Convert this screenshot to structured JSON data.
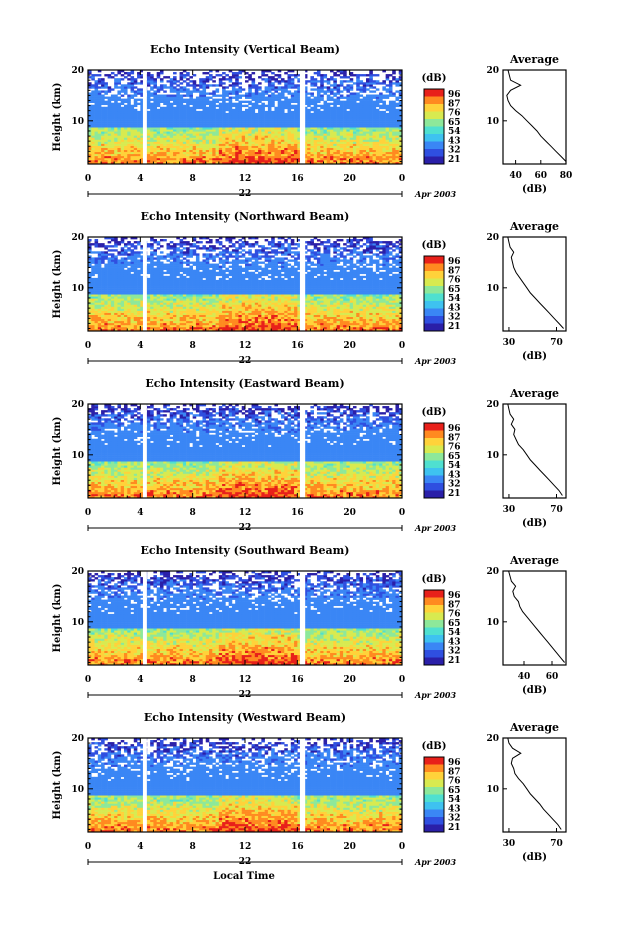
{
  "colors": {
    "colormap": [
      "#2a1fa8",
      "#2f4fe0",
      "#3a86f5",
      "#3ec2f0",
      "#4fe0d0",
      "#8de89a",
      "#d8ea50",
      "#ffd23a",
      "#ff8a20",
      "#e8201a"
    ],
    "line": "#000000",
    "gap": "#ffffff"
  },
  "chart_data": [
    {
      "type": "heatmap",
      "title": "Echo Intensity (Vertical Beam)",
      "ylabel": "Height (km)",
      "x_ticks": [
        "0",
        "4",
        "8",
        "12",
        "16",
        "20",
        "0"
      ],
      "y_ticks": [
        "20",
        "10"
      ],
      "xlim": [
        0,
        24
      ],
      "ylim": [
        1.5,
        20
      ],
      "date_day": "22",
      "date_label": "Apr 2003",
      "colorbar": {
        "unit": "(dB)",
        "labels": [
          "96",
          "87",
          "76",
          "65",
          "54",
          "43",
          "32",
          "21"
        ]
      },
      "data_gaps_hours": [
        [
          4.2,
          4.5
        ],
        [
          16.2,
          16.6
        ]
      ],
      "noise_seed": 11,
      "white_frac": 0.55,
      "avg_profile": {
        "title": "Average",
        "xlabel": "(dB)",
        "x_ticks": [
          "40",
          "60",
          "80"
        ],
        "xlim": [
          30,
          80
        ],
        "y_ticks": [
          "20",
          "10"
        ],
        "heights_km": [
          2,
          3,
          4,
          5,
          6,
          7,
          8,
          9,
          10,
          11,
          12,
          13,
          14,
          15,
          16,
          17,
          18,
          19,
          20
        ],
        "values_db": [
          80,
          76,
          72,
          68,
          64,
          60,
          57,
          53,
          49,
          45,
          40,
          36,
          34,
          33,
          36,
          44,
          36,
          35,
          34
        ]
      }
    },
    {
      "type": "heatmap",
      "title": "Echo Intensity (Northward Beam)",
      "ylabel": "Height (km)",
      "x_ticks": [
        "0",
        "4",
        "8",
        "12",
        "16",
        "20",
        "0"
      ],
      "y_ticks": [
        "20",
        "10"
      ],
      "xlim": [
        0,
        24
      ],
      "ylim": [
        1.5,
        20
      ],
      "date_day": "22",
      "date_label": "Apr 2003",
      "colorbar": {
        "unit": "(dB)",
        "labels": [
          "96",
          "87",
          "76",
          "65",
          "54",
          "43",
          "32",
          "21"
        ]
      },
      "data_gaps_hours": [
        [
          4.2,
          4.5
        ],
        [
          16.2,
          16.6
        ]
      ],
      "noise_seed": 23,
      "white_frac": 0.45,
      "avg_profile": {
        "title": "Average",
        "xlabel": "(dB)",
        "x_ticks": [
          "30",
          "70"
        ],
        "xlim": [
          25,
          78
        ],
        "y_ticks": [
          "20",
          "10"
        ],
        "heights_km": [
          2,
          3,
          4,
          5,
          6,
          7,
          8,
          9,
          10,
          11,
          12,
          13,
          14,
          15,
          16,
          17,
          18,
          19,
          20
        ],
        "values_db": [
          76,
          72,
          68,
          64,
          60,
          56,
          52,
          48,
          45,
          42,
          39,
          36,
          34,
          33,
          32,
          34,
          31,
          30,
          29
        ]
      }
    },
    {
      "type": "heatmap",
      "title": "Echo Intensity (Eastward Beam)",
      "ylabel": "Height (km)",
      "x_ticks": [
        "0",
        "4",
        "8",
        "12",
        "16",
        "20",
        "0"
      ],
      "y_ticks": [
        "20",
        "10"
      ],
      "xlim": [
        0,
        24
      ],
      "ylim": [
        1.5,
        20
      ],
      "date_day": "22",
      "date_label": "Apr 2003",
      "colorbar": {
        "unit": "(dB)",
        "labels": [
          "96",
          "87",
          "76",
          "65",
          "54",
          "43",
          "32",
          "21"
        ]
      },
      "data_gaps_hours": [
        [
          4.2,
          4.5
        ],
        [
          16.2,
          16.6
        ]
      ],
      "noise_seed": 37,
      "white_frac": 0.4,
      "avg_profile": {
        "title": "Average",
        "xlabel": "(dB)",
        "x_ticks": [
          "30",
          "70"
        ],
        "xlim": [
          25,
          78
        ],
        "y_ticks": [
          "20",
          "10"
        ],
        "heights_km": [
          2,
          3,
          4,
          5,
          6,
          7,
          8,
          9,
          10,
          11,
          12,
          13,
          14,
          15,
          16,
          17,
          18,
          19,
          20
        ],
        "values_db": [
          75,
          72,
          68,
          64,
          60,
          56,
          52,
          48,
          45,
          42,
          38,
          36,
          34,
          35,
          32,
          34,
          31,
          30,
          29
        ]
      }
    },
    {
      "type": "heatmap",
      "title": "Echo Intensity (Southward Beam)",
      "ylabel": "Height (km)",
      "x_ticks": [
        "0",
        "4",
        "8",
        "12",
        "16",
        "20",
        "0"
      ],
      "y_ticks": [
        "20",
        "10"
      ],
      "xlim": [
        0,
        24
      ],
      "ylim": [
        1.5,
        20
      ],
      "date_day": "22",
      "date_label": "Apr 2003",
      "colorbar": {
        "unit": "(dB)",
        "labels": [
          "96",
          "87",
          "76",
          "65",
          "54",
          "43",
          "32",
          "21"
        ]
      },
      "data_gaps_hours": [
        [
          4.2,
          4.5
        ],
        [
          16.2,
          16.6
        ]
      ],
      "noise_seed": 53,
      "white_frac": 0.42,
      "avg_profile": {
        "title": "Average",
        "xlabel": "(dB)",
        "x_ticks": [
          "40",
          "60"
        ],
        "xlim": [
          25,
          70
        ],
        "y_ticks": [
          "20",
          "10"
        ],
        "heights_km": [
          2,
          3,
          4,
          5,
          6,
          7,
          8,
          9,
          10,
          11,
          12,
          13,
          14,
          15,
          16,
          17,
          18,
          19,
          20
        ],
        "values_db": [
          69,
          66,
          63,
          60,
          57,
          54,
          51,
          48,
          45,
          42,
          39,
          37,
          36,
          33,
          32,
          34,
          31,
          30,
          29
        ]
      }
    },
    {
      "type": "heatmap",
      "title": "Echo Intensity (Westward Beam)",
      "ylabel": "Height (km)",
      "x_ticks": [
        "0",
        "4",
        "8",
        "12",
        "16",
        "20",
        "0"
      ],
      "y_ticks": [
        "20",
        "10"
      ],
      "xlim": [
        0,
        24
      ],
      "ylim": [
        1.5,
        20
      ],
      "date_day": "22",
      "date_label": "Apr 2003",
      "colorbar": {
        "unit": "(dB)",
        "labels": [
          "96",
          "87",
          "76",
          "65",
          "54",
          "43",
          "32",
          "21"
        ]
      },
      "data_gaps_hours": [
        [
          4.2,
          4.5
        ],
        [
          16.2,
          16.6
        ]
      ],
      "noise_seed": 71,
      "white_frac": 0.48,
      "avg_profile": {
        "title": "Average",
        "xlabel": "(dB)",
        "x_ticks": [
          "30",
          "70"
        ],
        "xlim": [
          25,
          78
        ],
        "y_ticks": [
          "20",
          "10"
        ],
        "heights_km": [
          2,
          3,
          4,
          5,
          6,
          7,
          8,
          9,
          10,
          11,
          12,
          13,
          14,
          15,
          16,
          17,
          18,
          19,
          20
        ],
        "values_db": [
          74,
          71,
          67,
          63,
          59,
          56,
          52,
          48,
          45,
          42,
          38,
          35,
          34,
          32,
          33,
          40,
          33,
          30,
          29
        ]
      }
    }
  ],
  "footer": {
    "xlabel": "Local Time"
  }
}
